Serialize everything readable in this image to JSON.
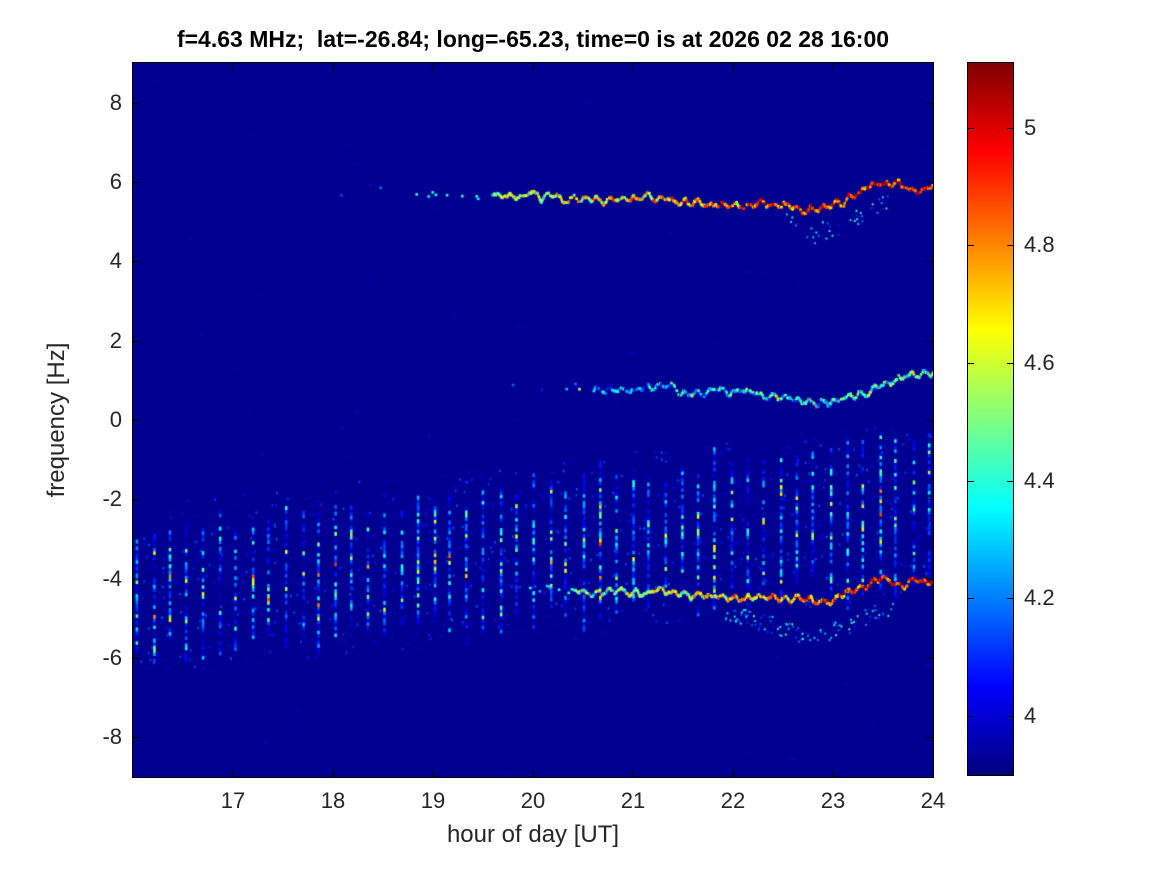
{
  "chart_data": {
    "type": "heatmap",
    "title": "f=4.63 MHz;  lat=-26.84; long=-65.23, time=0 is at 2026 02 28 16:00",
    "xlabel": "hour of day [UT]",
    "ylabel": "frequency [Hz]",
    "xlim": [
      16,
      24
    ],
    "ylim": [
      -9,
      9
    ],
    "xticks": [
      17,
      18,
      19,
      20,
      21,
      22,
      23,
      24
    ],
    "yticks": [
      8,
      6,
      4,
      2,
      0,
      -2,
      -4,
      -6,
      -8
    ],
    "grid": false,
    "colormap": "jet",
    "background_value": 3.92,
    "colorbar": {
      "min": 3.9,
      "max": 5.11,
      "ticks": [
        4,
        4.2,
        4.4,
        4.6,
        4.8,
        5
      ],
      "position": "right"
    },
    "render_seed": 20260228,
    "features": {
      "burst_stripes": {
        "description": "periodic vertical burst stripes (~10 min cadence) drifting upward in frequency over the day",
        "h_start": 16.03,
        "h_end": 24.0,
        "interval_hours": 0.165,
        "center_freq_start": -4.35,
        "center_freq_end": -2.15,
        "half_height_start": 1.45,
        "half_height_end": 1.8
      },
      "traces": [
        {
          "name": "upper doppler trace near +5.6 Hz",
          "points": [
            [
              17.5,
              5.75
            ],
            [
              18.5,
              5.7
            ],
            [
              19.3,
              5.68
            ],
            [
              20.0,
              5.6
            ],
            [
              20.7,
              5.57
            ],
            [
              21.4,
              5.55
            ],
            [
              21.9,
              5.5
            ],
            [
              22.3,
              5.4
            ],
            [
              22.75,
              5.28
            ],
            [
              23.1,
              5.45
            ],
            [
              23.45,
              5.9
            ],
            [
              23.6,
              6.0
            ],
            [
              23.8,
              5.78
            ],
            [
              24.0,
              5.95
            ]
          ],
          "dense_from": 19.6,
          "sparse_density": 0.07,
          "value_start": 4.3,
          "value_end": 5.0
        },
        {
          "name": "weak trace near +0.8 Hz",
          "points": [
            [
              19.8,
              0.9
            ],
            [
              20.6,
              0.85
            ],
            [
              21.3,
              0.78
            ],
            [
              22.0,
              0.68
            ],
            [
              22.4,
              0.55
            ],
            [
              22.8,
              0.45
            ],
            [
              23.1,
              0.55
            ],
            [
              23.35,
              0.75
            ],
            [
              23.6,
              1.0
            ],
            [
              23.8,
              1.2
            ],
            [
              24.0,
              1.1
            ]
          ],
          "dense_from": 20.6,
          "sparse_density": 0.12,
          "value_start": 4.1,
          "value_end": 4.45
        },
        {
          "name": "lower doppler trace near -4.3 Hz",
          "points": [
            [
              19.7,
              -4.2
            ],
            [
              20.3,
              -4.3
            ],
            [
              21.0,
              -4.32
            ],
            [
              21.6,
              -4.38
            ],
            [
              22.1,
              -4.42
            ],
            [
              22.5,
              -4.5
            ],
            [
              22.85,
              -4.6
            ],
            [
              23.2,
              -4.25
            ],
            [
              23.5,
              -4.0
            ],
            [
              23.75,
              -4.15
            ],
            [
              24.0,
              -4.0
            ]
          ],
          "dense_from": 20.4,
          "sparse_density": 0.2,
          "value_start": 4.3,
          "value_end": 5.0
        }
      ],
      "echo_scatter": [
        {
          "name": "diffuse echo below lower trace",
          "points": [
            [
              21.9,
              -4.8
            ],
            [
              22.4,
              -5.15
            ],
            [
              22.75,
              -5.5
            ],
            [
              23.05,
              -5.25
            ],
            [
              23.35,
              -4.95
            ],
            [
              23.6,
              -4.65
            ]
          ],
          "density": 0.35,
          "spread": 0.22,
          "value_range": [
            4.05,
            4.5
          ]
        },
        {
          "name": "diffuse echo below upper trace",
          "points": [
            [
              22.5,
              5.05
            ],
            [
              22.8,
              4.72
            ],
            [
              23.1,
              4.9
            ],
            [
              23.35,
              5.3
            ],
            [
              23.55,
              5.5
            ]
          ],
          "density": 0.2,
          "spread": 0.25,
          "value_range": [
            4.0,
            4.45
          ]
        }
      ]
    }
  }
}
